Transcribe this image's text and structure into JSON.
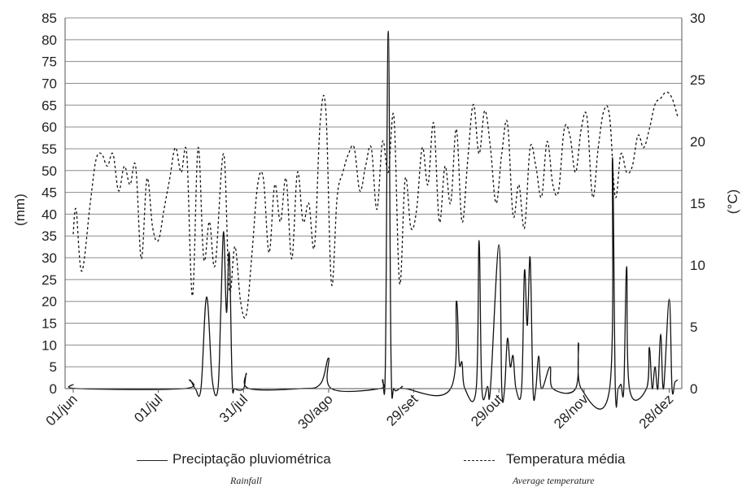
{
  "chart_data": {
    "type": "line",
    "x_tick_labels": [
      "01/jun",
      "01/jul",
      "31/jul",
      "30/ago",
      "29/set",
      "29/out",
      "28/nov",
      "28/dez"
    ],
    "y_left": {
      "label": "(mm)",
      "ticks": [
        "0",
        "5",
        "10",
        "15",
        "20",
        "25",
        "30",
        "35",
        "40",
        "45",
        "50",
        "55",
        "60",
        "65",
        "70",
        "75",
        "80",
        "85"
      ],
      "range": [
        0,
        85
      ]
    },
    "y_right": {
      "label": "(°C)",
      "ticks": [
        "0",
        "5",
        "10",
        "15",
        "20",
        "25",
        "30"
      ],
      "range": [
        0,
        30
      ]
    },
    "grid": "horizontal",
    "legend_position": "bottom",
    "series": [
      {
        "name": "Preciptação pluviométrica",
        "subtitle": "Rainfall",
        "axis": "left",
        "style": "solid",
        "points": [
          [
            "01/jun",
            1.0
          ],
          [
            "03/jun",
            0
          ],
          [
            "10/jul",
            0
          ],
          [
            "12/jul",
            2.0
          ],
          [
            "14/jul",
            0
          ],
          [
            "16/jul",
            0
          ],
          [
            "18/jul",
            21.0
          ],
          [
            "20/jul",
            2
          ],
          [
            "22/jul",
            0
          ],
          [
            "23/jul",
            18
          ],
          [
            "24/jul",
            36.0
          ],
          [
            "25/jul",
            17.5
          ],
          [
            "26/jul",
            31
          ],
          [
            "27/jul",
            2
          ],
          [
            "28/jul",
            0
          ],
          [
            "31/jul",
            0
          ],
          [
            "01/ago",
            3.5
          ],
          [
            "02/ago",
            0
          ],
          [
            "20/ago",
            0
          ],
          [
            "27/ago",
            1
          ],
          [
            "30/ago",
            7.0
          ],
          [
            "31/ago",
            0
          ],
          [
            "17/set",
            0
          ],
          [
            "18/set",
            2
          ],
          [
            "19/set",
            6
          ],
          [
            "20/set",
            82.0
          ],
          [
            "21/set",
            6
          ],
          [
            "22/set",
            0
          ],
          [
            "24/set",
            0
          ],
          [
            "25/set",
            0.5
          ],
          [
            "26/set",
            0
          ],
          [
            "12/out",
            0
          ],
          [
            "14/out",
            20.0
          ],
          [
            "15/out",
            6
          ],
          [
            "16/out",
            6.0
          ],
          [
            "17/out",
            0
          ],
          [
            "21/out",
            0
          ],
          [
            "22/out",
            34.0
          ],
          [
            "23/out",
            0
          ],
          [
            "25/out",
            0.5
          ],
          [
            "26/out",
            0
          ],
          [
            "29/out",
            33.0
          ],
          [
            "30/out",
            0
          ],
          [
            "31/out",
            0
          ],
          [
            "01/nov",
            11.5
          ],
          [
            "02/nov",
            5
          ],
          [
            "03/nov",
            7.5
          ],
          [
            "04/nov",
            0
          ],
          [
            "06/nov",
            0
          ],
          [
            "07/nov",
            27.0
          ],
          [
            "08/nov",
            14.5
          ],
          [
            "09/nov",
            30.0
          ],
          [
            "10/nov",
            0
          ],
          [
            "11/nov",
            0
          ],
          [
            "12/nov",
            7.5
          ],
          [
            "13/nov",
            0
          ],
          [
            "16/nov",
            5.0
          ],
          [
            "17/nov",
            0
          ],
          [
            "25/nov",
            0
          ],
          [
            "26/nov",
            10.5
          ],
          [
            "27/nov",
            0
          ],
          [
            "07/dez",
            0
          ],
          [
            "08/dez",
            53.0
          ],
          [
            "09/dez",
            0
          ],
          [
            "10/dez",
            0
          ],
          [
            "11/dez",
            1
          ],
          [
            "12/dez",
            0
          ],
          [
            "13/dez",
            28.0
          ],
          [
            "14/dez",
            0
          ],
          [
            "20/dez",
            0
          ],
          [
            "21/dez",
            9.5
          ],
          [
            "22/dez",
            0
          ],
          [
            "23/dez",
            5
          ],
          [
            "24/dez",
            0
          ],
          [
            "25/dez",
            12.5
          ],
          [
            "26/dez",
            0
          ],
          [
            "28/dez",
            20.5
          ],
          [
            "29/dez",
            0
          ],
          [
            "30/dez",
            1.5
          ],
          [
            "31/dez",
            2
          ]
        ]
      },
      {
        "name": "Temperatura média",
        "subtitle": "Average temperature",
        "axis": "right",
        "style": "dashed",
        "points": [
          [
            "01/jun",
            12.5
          ],
          [
            "02/jun",
            14.5
          ],
          [
            "04/jun",
            9.5
          ],
          [
            "07/jun",
            15.0
          ],
          [
            "09/jun",
            18.5
          ],
          [
            "11/jun",
            19.0
          ],
          [
            "13/jun",
            18.0
          ],
          [
            "15/jun",
            19.0
          ],
          [
            "17/jun",
            16.0
          ],
          [
            "19/jun",
            18.0
          ],
          [
            "21/jun",
            16.5
          ],
          [
            "23/jun",
            18.0
          ],
          [
            "25/jun",
            10.5
          ],
          [
            "27/jun",
            17.0
          ],
          [
            "29/jun",
            13.0
          ],
          [
            "01/jul",
            12.0
          ],
          [
            "03/jul",
            14.5
          ],
          [
            "05/jul",
            17.0
          ],
          [
            "07/jul",
            19.5
          ],
          [
            "09/jul",
            17.5
          ],
          [
            "11/jul",
            19.0
          ],
          [
            "13/jul",
            7.5
          ],
          [
            "15/jul",
            19.5
          ],
          [
            "17/jul",
            10.5
          ],
          [
            "19/jul",
            13.5
          ],
          [
            "21/jul",
            10.0
          ],
          [
            "24/jul",
            19.0
          ],
          [
            "26/jul",
            8.0
          ],
          [
            "28/jul",
            11.5
          ],
          [
            "30/jul",
            7.0
          ],
          [
            "01/ago",
            6.0
          ],
          [
            "03/ago",
            11.0
          ],
          [
            "05/ago",
            16.5
          ],
          [
            "07/ago",
            17.0
          ],
          [
            "09/ago",
            11.0
          ],
          [
            "11/ago",
            16.5
          ],
          [
            "13/ago",
            13.5
          ],
          [
            "15/ago",
            17.0
          ],
          [
            "17/ago",
            10.5
          ],
          [
            "19/ago",
            17.5
          ],
          [
            "21/ago",
            13.5
          ],
          [
            "23/ago",
            15.0
          ],
          [
            "25/ago",
            11.5
          ],
          [
            "27/ago",
            21.5
          ],
          [
            "29/ago",
            22.5
          ],
          [
            "31/ago",
            8.5
          ],
          [
            "02/set",
            15.5
          ],
          [
            "04/set",
            17.5
          ],
          [
            "06/set",
            19.0
          ],
          [
            "08/set",
            19.5
          ],
          [
            "10/set",
            16.0
          ],
          [
            "12/set",
            18.0
          ],
          [
            "14/set",
            19.5
          ],
          [
            "16/set",
            14.5
          ],
          [
            "18/set",
            20.0
          ],
          [
            "20/set",
            17.5
          ],
          [
            "22/set",
            22.0
          ],
          [
            "24/set",
            8.5
          ],
          [
            "26/set",
            17.0
          ],
          [
            "28/set",
            13.0
          ],
          [
            "30/set",
            14.5
          ],
          [
            "02/out",
            19.5
          ],
          [
            "04/out",
            16.5
          ],
          [
            "06/out",
            21.5
          ],
          [
            "08/out",
            13.5
          ],
          [
            "10/out",
            18.0
          ],
          [
            "12/out",
            15.0
          ],
          [
            "14/out",
            21.0
          ],
          [
            "16/out",
            13.5
          ],
          [
            "18/out",
            18.5
          ],
          [
            "20/out",
            23.0
          ],
          [
            "22/out",
            19.0
          ],
          [
            "24/out",
            22.5
          ],
          [
            "26/out",
            19.5
          ],
          [
            "28/out",
            15.0
          ],
          [
            "30/out",
            19.0
          ],
          [
            "01/nov",
            21.5
          ],
          [
            "03/nov",
            14.0
          ],
          [
            "05/nov",
            16.5
          ],
          [
            "07/nov",
            13.0
          ],
          [
            "09/nov",
            19.5
          ],
          [
            "11/nov",
            18.0
          ],
          [
            "13/nov",
            15.5
          ],
          [
            "15/nov",
            20.0
          ],
          [
            "17/nov",
            16.5
          ],
          [
            "19/nov",
            16.0
          ],
          [
            "21/nov",
            21.0
          ],
          [
            "23/nov",
            20.5
          ],
          [
            "25/nov",
            17.5
          ],
          [
            "27/nov",
            21.0
          ],
          [
            "29/nov",
            22.0
          ],
          [
            "01/dez",
            15.5
          ],
          [
            "03/dez",
            19.5
          ],
          [
            "05/dez",
            22.5
          ],
          [
            "07/dez",
            22.0
          ],
          [
            "09/dez",
            15.5
          ],
          [
            "11/dez",
            19.0
          ],
          [
            "13/dez",
            17.5
          ],
          [
            "15/dez",
            18.0
          ],
          [
            "17/dez",
            20.5
          ],
          [
            "19/dez",
            19.5
          ],
          [
            "21/dez",
            21.0
          ],
          [
            "23/dez",
            23.0
          ],
          [
            "25/dez",
            23.5
          ],
          [
            "27/dez",
            24.0
          ],
          [
            "29/dez",
            23.5
          ],
          [
            "31/dez",
            22.0
          ]
        ]
      }
    ]
  }
}
